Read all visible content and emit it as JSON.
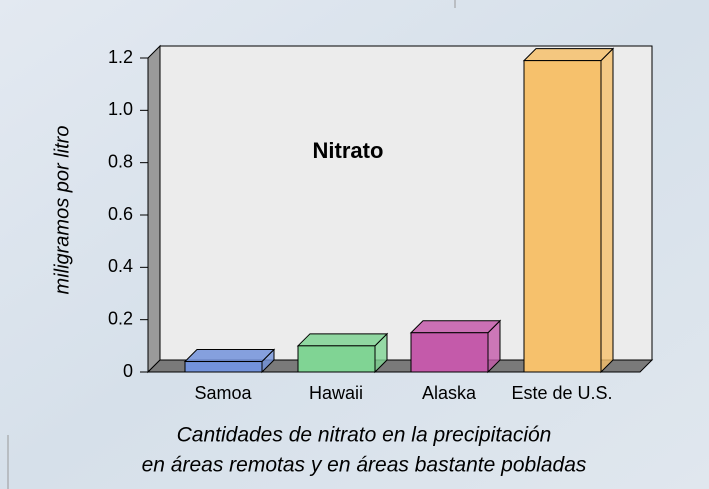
{
  "chart_data": {
    "type": "bar3d",
    "title": "Nitrato",
    "categories": [
      "Samoa",
      "Hawaii",
      "Alaska",
      "Este de U.S."
    ],
    "values": [
      0.04,
      0.1,
      0.15,
      1.19
    ],
    "colors": [
      "#7393dc",
      "#80d494",
      "#c45aaa",
      "#f6c16c"
    ],
    "ylabel": "miligramos por litro",
    "ylim": [
      0,
      1.2
    ],
    "yticks": [
      0,
      0.2,
      0.4,
      0.6,
      0.8,
      {
        "value": 1,
        "label": "1.0"
      },
      1.2
    ],
    "caption": [
      "Cantidades de nitrato en la precipitación",
      "en áreas remotas y en áreas bastante pobladas"
    ]
  }
}
